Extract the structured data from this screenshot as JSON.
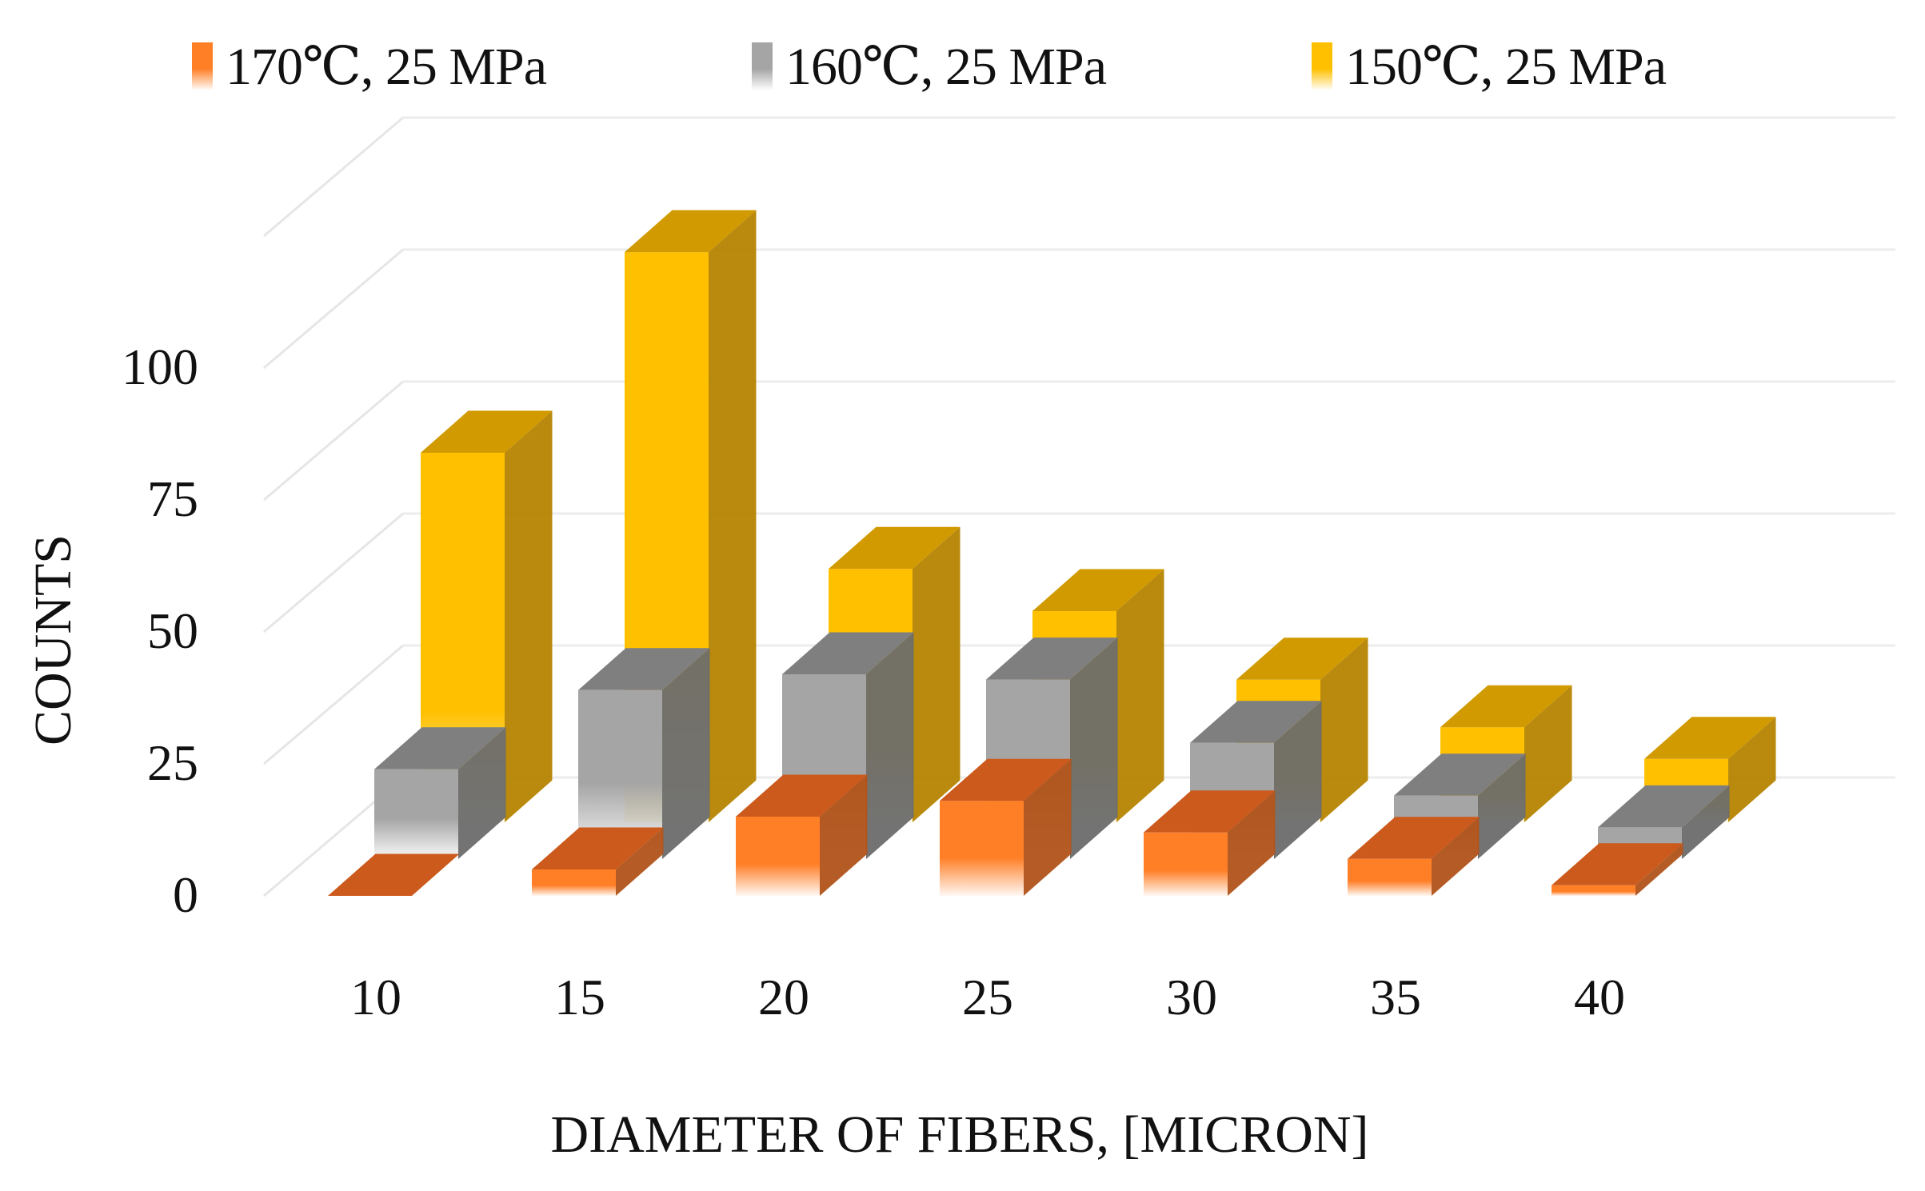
{
  "chart_data": {
    "type": "bar",
    "subtype": "3d-clustered-column",
    "title": "",
    "xlabel": "DIAMETER OF FIBERS, [MICRON]",
    "ylabel": "COUNTS",
    "categories": [
      "10",
      "15",
      "20",
      "25",
      "30",
      "35",
      "40"
    ],
    "yticks": [
      "0",
      "25",
      "50",
      "75",
      "100"
    ],
    "ylim": [
      0,
      125
    ],
    "grid": true,
    "legend_position": "top",
    "series": [
      {
        "name": "170℃, 25 MPa",
        "color": "#FF7F27",
        "values": [
          0,
          5,
          15,
          18,
          12,
          7,
          2
        ]
      },
      {
        "name": "160℃, 25 MPa",
        "color": "#A5A5A5",
        "values": [
          17,
          32,
          35,
          34,
          22,
          12,
          6
        ]
      },
      {
        "name": "150℃, 25 MPa",
        "color": "#FFC000",
        "values": [
          70,
          108,
          48,
          40,
          27,
          18,
          12
        ]
      }
    ]
  },
  "legend": {
    "items": [
      {
        "label": "170℃, 25 MPa",
        "color": "#FF7F27"
      },
      {
        "label": "160℃, 25 MPa",
        "color": "#A5A5A5"
      },
      {
        "label": "150℃, 25 MPa",
        "color": "#FFC000"
      }
    ]
  },
  "axes": {
    "y_title": "COUNTS",
    "x_title": "DIAMETER OF FIBERS, [MICRON]"
  }
}
